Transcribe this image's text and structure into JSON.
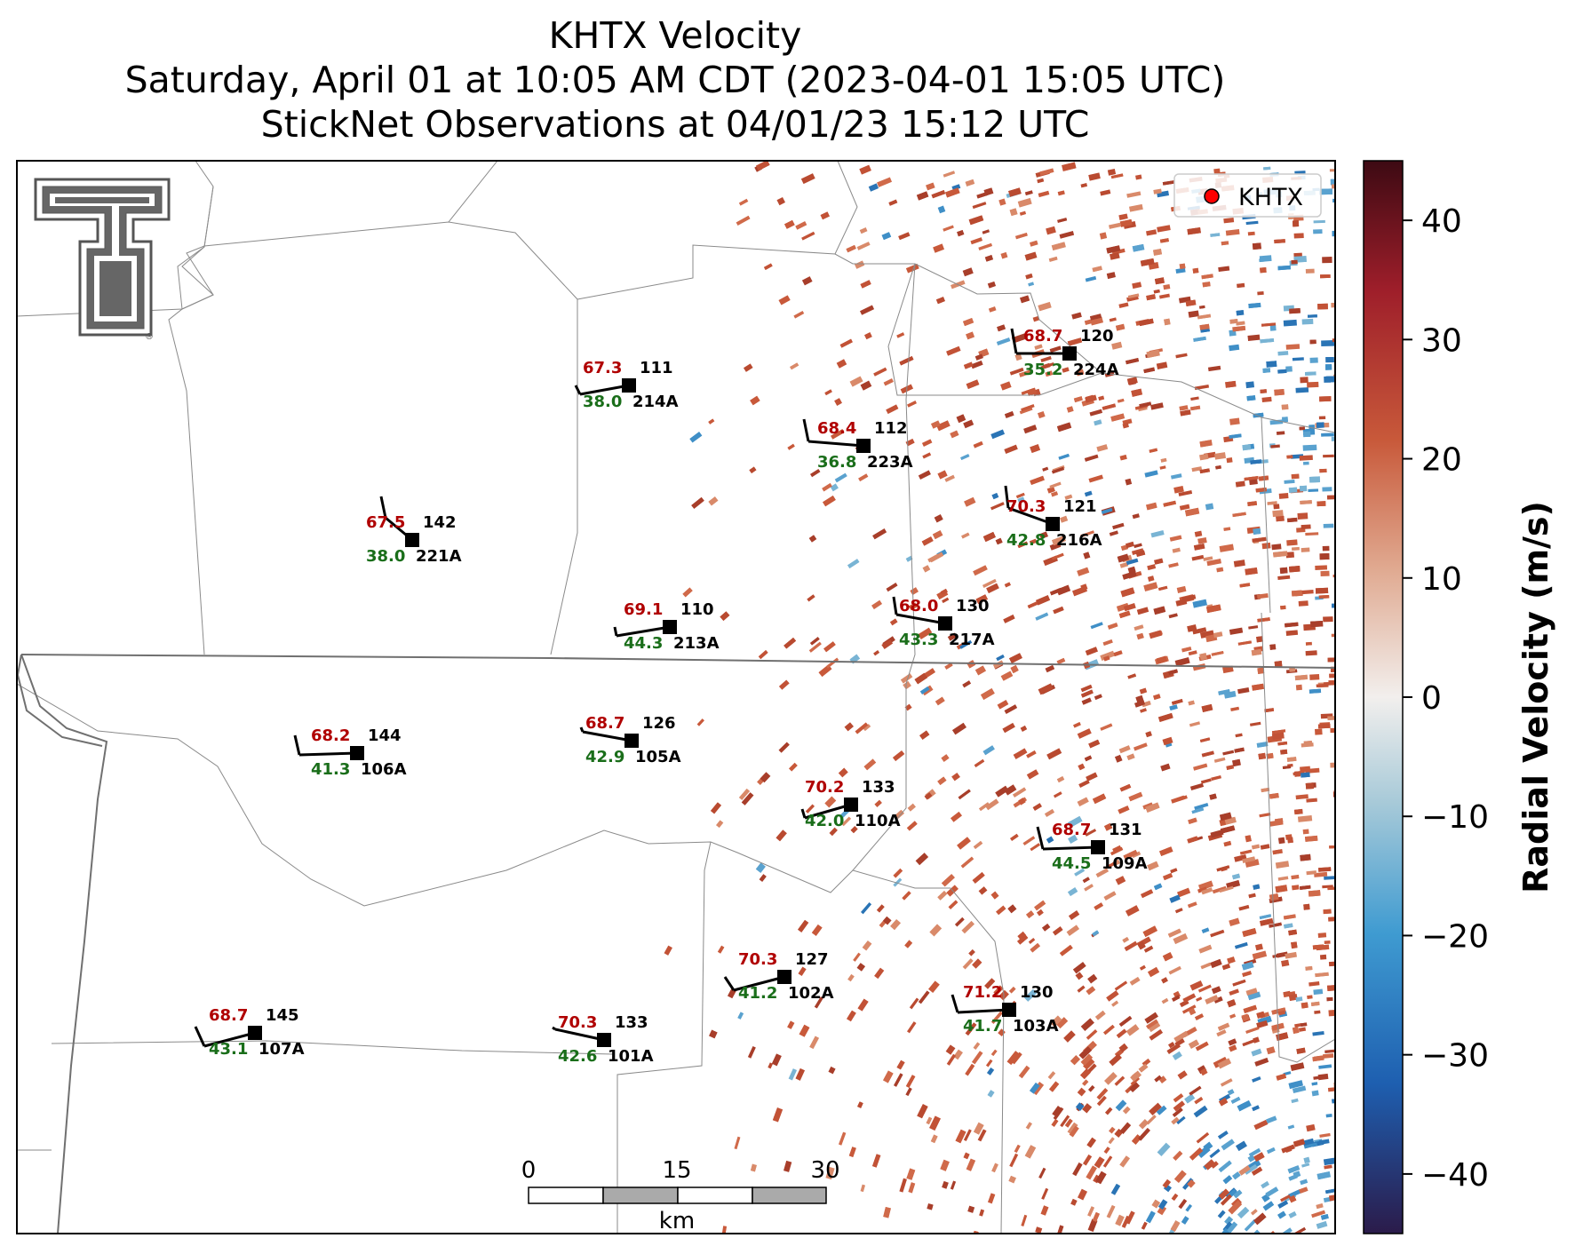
{
  "title": {
    "line1": "KHTX Velocity",
    "line2": "Saturday, April 01 at 10:05 AM CDT (2023-04-01 15:05 UTC)",
    "line3": "StickNet Observations at 04/01/23 15:12 UTC"
  },
  "legend": {
    "label": "KHTX",
    "marker_color": "#ff0000"
  },
  "colorbar": {
    "label": "Radial Velocity (m/s)",
    "ticks": [
      "40",
      "30",
      "20",
      "10",
      "0",
      "−10",
      "−20",
      "−30",
      "−40"
    ],
    "range": [
      -45,
      45
    ],
    "colormap": "balance",
    "colors": [
      "#2b1b4a",
      "#1e5fb0",
      "#3f9bd1",
      "#a6c9d8",
      "#f2efed",
      "#e0a990",
      "#c8593a",
      "#9e1e2a",
      "#3d0a13"
    ]
  },
  "scale_bar": {
    "ticks": [
      "0",
      "15",
      "30"
    ],
    "unit": "km"
  },
  "logo": {
    "name": "Texas Tech Double T",
    "registered": "®"
  },
  "stations": [
    {
      "id": "214A",
      "dir": "111",
      "temp": "67.3",
      "dew": "38.0"
    },
    {
      "id": "224A",
      "dir": "120",
      "temp": "68.7",
      "dew": "35.2"
    },
    {
      "id": "223A",
      "dir": "112",
      "temp": "68.4",
      "dew": "36.8"
    },
    {
      "id": "221A",
      "dir": "142",
      "temp": "67.5",
      "dew": "38.0"
    },
    {
      "id": "216A",
      "dir": "121",
      "temp": "70.3",
      "dew": "42.8"
    },
    {
      "id": "213A",
      "dir": "110",
      "temp": "69.1",
      "dew": "44.3"
    },
    {
      "id": "217A",
      "dir": "130",
      "temp": "68.0",
      "dew": "43.3"
    },
    {
      "id": "106A",
      "dir": "144",
      "temp": "68.2",
      "dew": "41.3"
    },
    {
      "id": "105A",
      "dir": "126",
      "temp": "68.7",
      "dew": "42.9"
    },
    {
      "id": "110A",
      "dir": "133",
      "temp": "70.2",
      "dew": "42.0"
    },
    {
      "id": "109A",
      "dir": "131",
      "temp": "68.7",
      "dew": "44.5"
    },
    {
      "id": "102A",
      "dir": "127",
      "temp": "70.3",
      "dew": "41.2"
    },
    {
      "id": "103A",
      "dir": "130",
      "temp": "71.2",
      "dew": "41.7"
    },
    {
      "id": "107A",
      "dir": "145",
      "temp": "68.7",
      "dew": "43.1"
    },
    {
      "id": "101A",
      "dir": "133",
      "temp": "70.3",
      "dew": "42.6"
    }
  ],
  "colors": {
    "temp_text": "#b00000",
    "dew_text": "#1a6e1a",
    "station_marker": "#000000",
    "boundary": "#8a8a8a",
    "state_line": "#707070"
  }
}
